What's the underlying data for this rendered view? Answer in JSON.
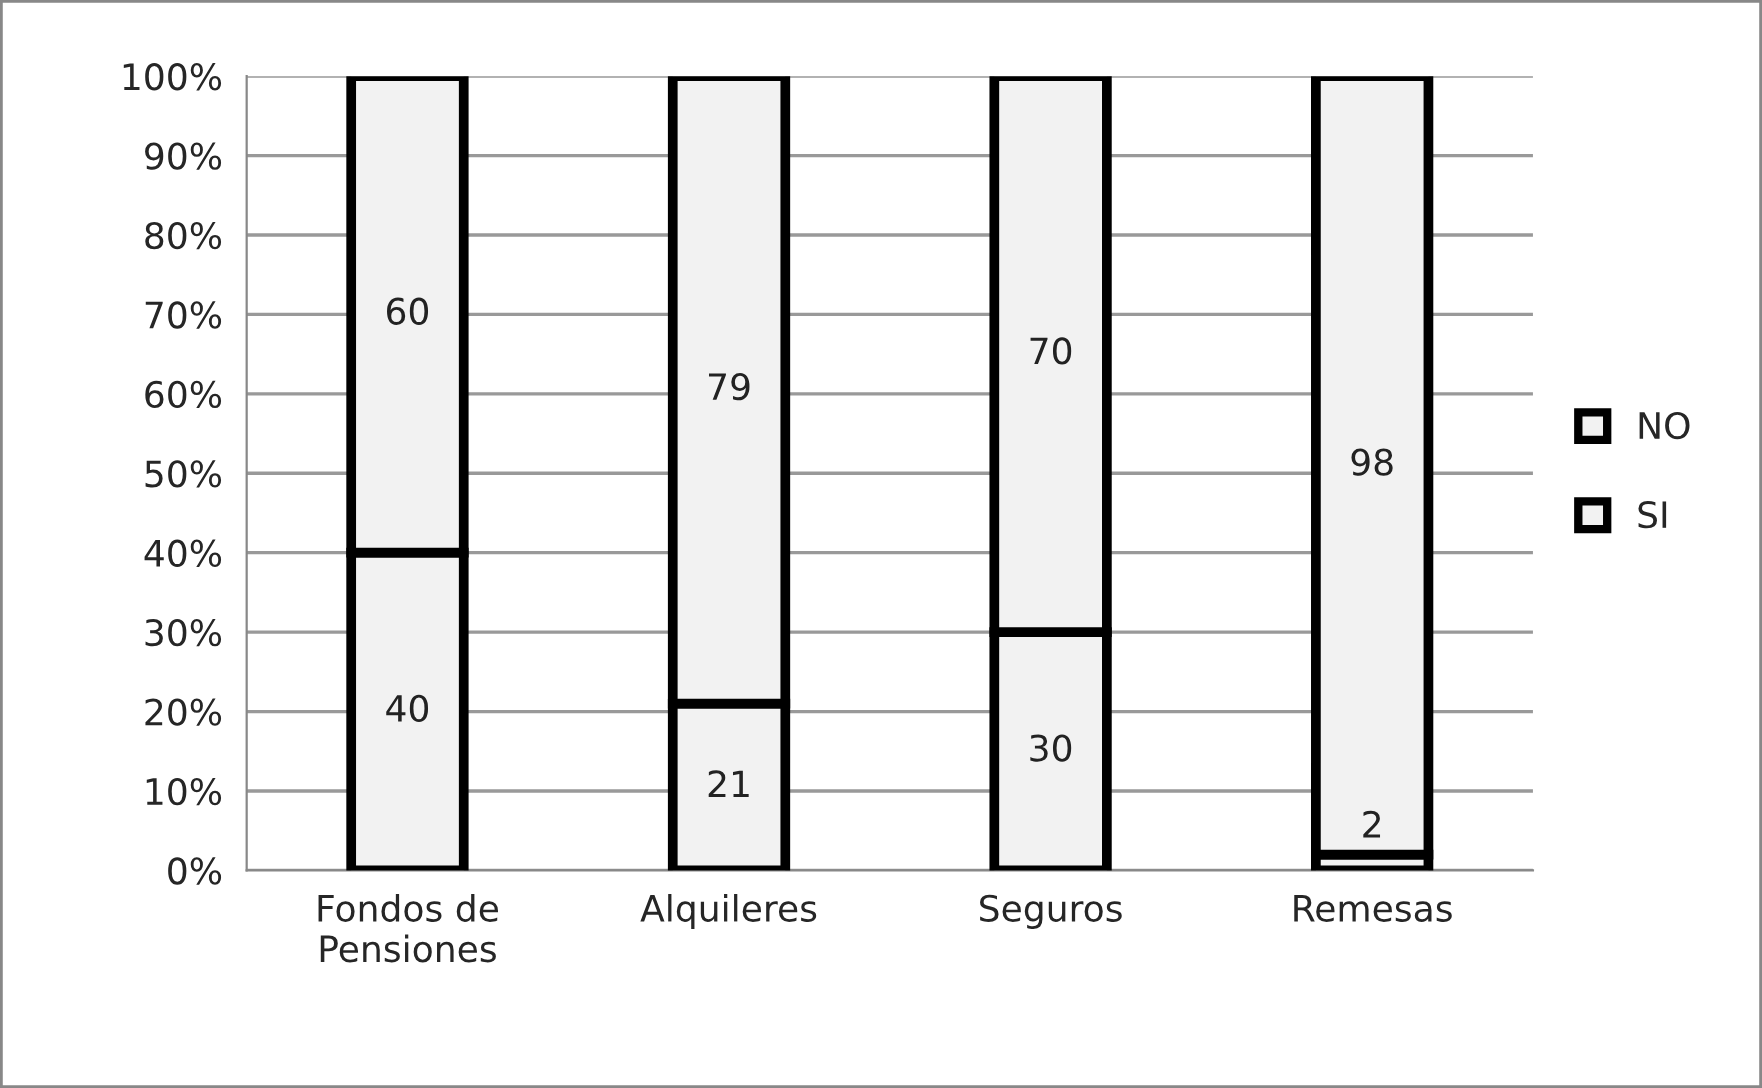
{
  "chart_data": {
    "type": "bar",
    "stacked": true,
    "categories": [
      "Fondos de Pensiones",
      "Alquileres",
      "Seguros",
      "Remesas"
    ],
    "series": [
      {
        "name": "SI",
        "color": "#f2f2f2",
        "values": [
          40,
          21,
          30,
          2
        ]
      },
      {
        "name": "NO",
        "color": "#f2f2f2",
        "values": [
          60,
          79,
          70,
          98
        ]
      }
    ],
    "ylim": [
      0,
      100
    ],
    "yticks": [
      {
        "value": 0,
        "label": "0%"
      },
      {
        "value": 10,
        "label": "10%"
      },
      {
        "value": 20,
        "label": "20%"
      },
      {
        "value": 30,
        "label": "30%"
      },
      {
        "value": 40,
        "label": "40%"
      },
      {
        "value": 50,
        "label": "50%"
      },
      {
        "value": 60,
        "label": "60%"
      },
      {
        "value": 70,
        "label": "70%"
      },
      {
        "value": 80,
        "label": "80%"
      },
      {
        "value": 90,
        "label": "90%"
      },
      {
        "value": 100,
        "label": "100%"
      }
    ],
    "grid": "y",
    "legend": "right",
    "data_labels": true
  }
}
